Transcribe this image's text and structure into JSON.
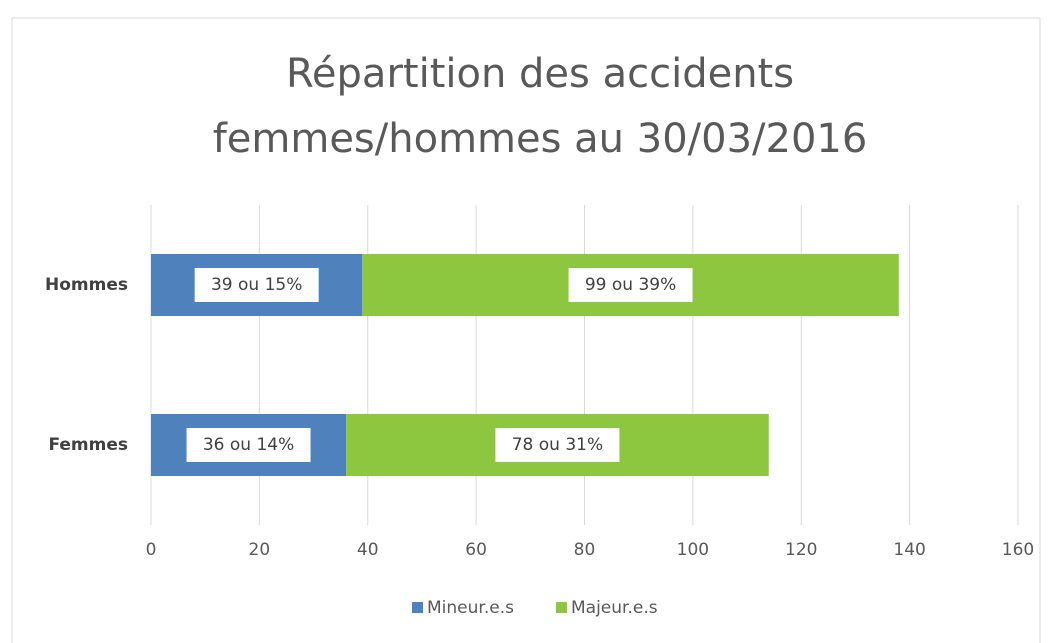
{
  "chart_data": {
    "type": "stacked_bar_horizontal",
    "title": [
      "Répartition des accidents",
      "femmes/hommes au 30/03/2016"
    ],
    "categories": [
      "Hommes",
      "Femmes"
    ],
    "series": [
      {
        "name": "Mineur.e.s",
        "color": "#4f81bd",
        "values": [
          39,
          36
        ],
        "value_labels": [
          "39 ou 15%",
          "36 ou 14%"
        ]
      },
      {
        "name": "Majeur.e.s",
        "color": "#8dc63f",
        "values": [
          99,
          78
        ],
        "value_labels": [
          "99 ou 39%",
          "78 ou 31%"
        ]
      }
    ],
    "xlim": [
      0,
      160
    ],
    "xticks": [
      0,
      20,
      40,
      60,
      80,
      100,
      120,
      140,
      160
    ],
    "grid": true,
    "legend": "bottom"
  }
}
